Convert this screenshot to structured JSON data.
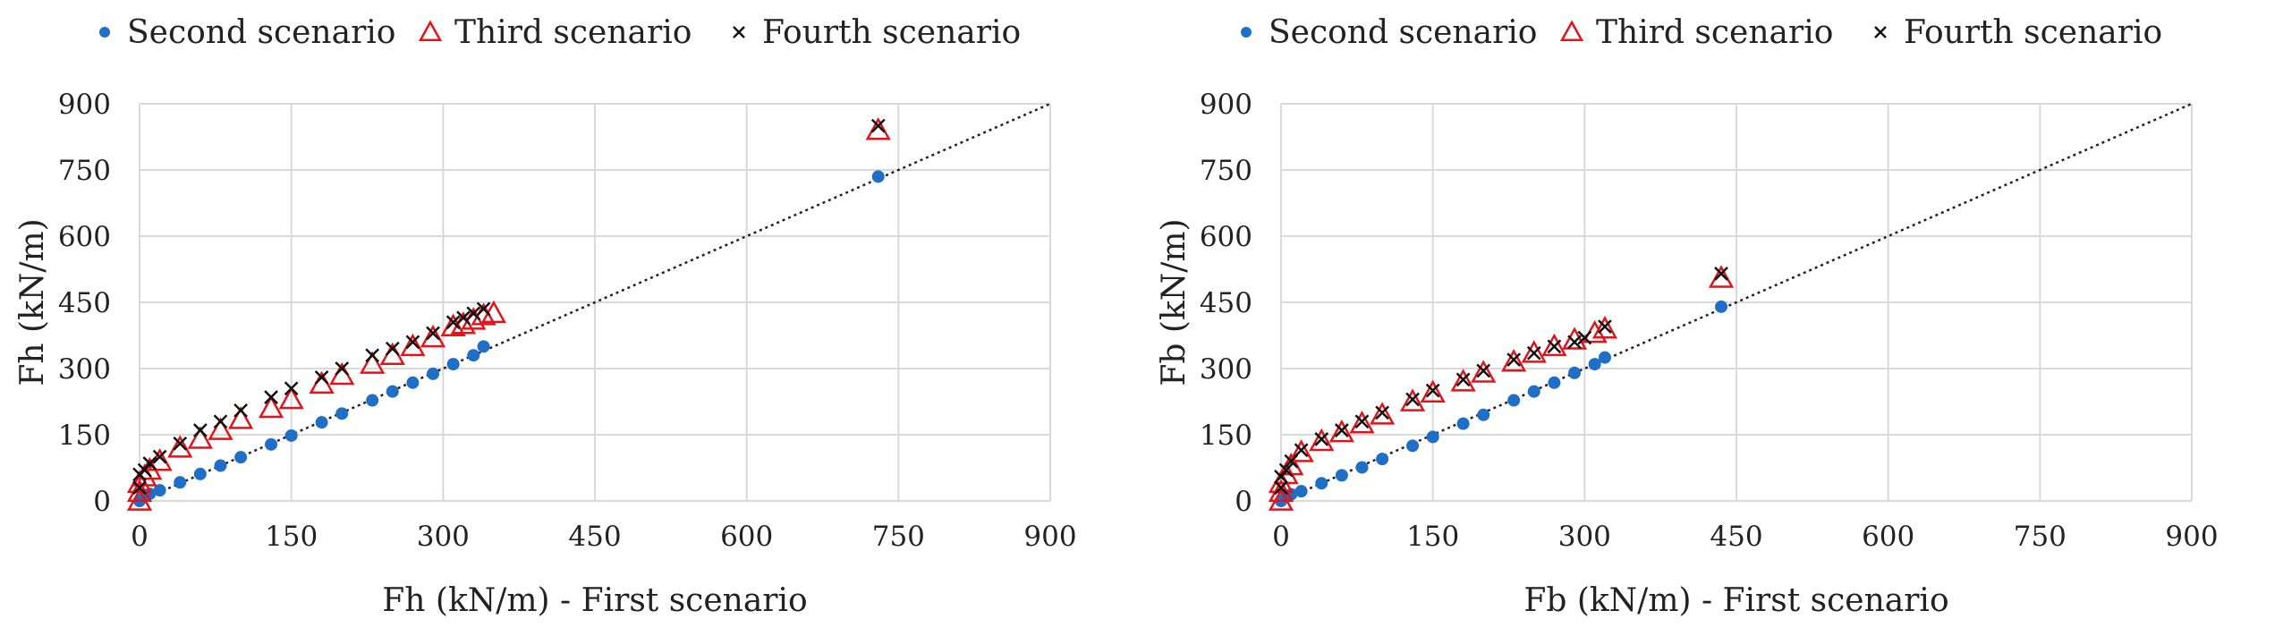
{
  "colors": {
    "second": "#1f6fc6",
    "third": "#e0151b",
    "fourth": "#111111",
    "grid": "#d9d9d9",
    "reference_line": "#222222"
  },
  "chart_data": [
    {
      "type": "scatter",
      "xlabel": "Fh (kN/m) - First scenario",
      "ylabel": "Fh (kN/m)",
      "xlim": [
        0,
        900
      ],
      "ylim": [
        0,
        900
      ],
      "xticks": [
        "0",
        "150",
        "300",
        "450",
        "600",
        "750",
        "900"
      ],
      "yticks": [
        "0",
        "150",
        "300",
        "450",
        "600",
        "750",
        "900"
      ],
      "grid": true,
      "legend_position": "top",
      "reference_line": {
        "x": [
          0,
          900
        ],
        "y": [
          0,
          900
        ],
        "style": "dotted"
      },
      "series": [
        {
          "name": "Second scenario",
          "marker": "circle",
          "x": [
            0,
            5,
            10,
            20,
            40,
            60,
            80,
            100,
            130,
            150,
            180,
            200,
            230,
            250,
            270,
            290,
            310,
            330,
            340,
            730
          ],
          "y": [
            0,
            10,
            16,
            24,
            42,
            61,
            80,
            99,
            128,
            148,
            178,
            198,
            228,
            248,
            268,
            288,
            310,
            330,
            350,
            735
          ]
        },
        {
          "name": "Third scenario",
          "marker": "triangle",
          "x": [
            0,
            0,
            0,
            5,
            10,
            20,
            40,
            60,
            80,
            100,
            130,
            150,
            180,
            200,
            230,
            250,
            270,
            290,
            310,
            320,
            330,
            340,
            350,
            730
          ],
          "y": [
            0,
            20,
            40,
            55,
            70,
            90,
            120,
            140,
            160,
            185,
            210,
            230,
            265,
            285,
            310,
            330,
            350,
            370,
            395,
            400,
            410,
            420,
            425,
            840
          ]
        },
        {
          "name": "Fourth scenario",
          "marker": "x",
          "x": [
            0,
            0,
            5,
            10,
            20,
            40,
            60,
            80,
            100,
            130,
            150,
            180,
            200,
            230,
            250,
            270,
            290,
            310,
            320,
            330,
            340,
            730
          ],
          "y": [
            30,
            60,
            70,
            85,
            100,
            130,
            160,
            180,
            205,
            235,
            255,
            280,
            300,
            330,
            345,
            360,
            380,
            405,
            415,
            425,
            435,
            850
          ]
        }
      ]
    },
    {
      "type": "scatter",
      "xlabel": "Fb (kN/m) - First scenario",
      "ylabel": "Fb (kN/m)",
      "xlim": [
        0,
        900
      ],
      "ylim": [
        0,
        900
      ],
      "xticks": [
        "0",
        "150",
        "300",
        "450",
        "600",
        "750",
        "900"
      ],
      "yticks": [
        "0",
        "150",
        "300",
        "450",
        "600",
        "750",
        "900"
      ],
      "grid": true,
      "legend_position": "top",
      "reference_line": {
        "x": [
          0,
          900
        ],
        "y": [
          0,
          900
        ],
        "style": "dotted"
      },
      "series": [
        {
          "name": "Second scenario",
          "marker": "circle",
          "x": [
            0,
            5,
            10,
            20,
            40,
            60,
            80,
            100,
            130,
            150,
            180,
            200,
            230,
            250,
            270,
            290,
            310,
            320,
            435
          ],
          "y": [
            0,
            10,
            15,
            22,
            40,
            58,
            76,
            95,
            125,
            145,
            175,
            195,
            228,
            248,
            268,
            290,
            310,
            325,
            440
          ]
        },
        {
          "name": "Third scenario",
          "marker": "triangle",
          "x": [
            0,
            0,
            0,
            5,
            10,
            20,
            40,
            60,
            80,
            100,
            130,
            150,
            180,
            200,
            230,
            250,
            270,
            290,
            310,
            320,
            435
          ],
          "y": [
            0,
            20,
            40,
            60,
            80,
            110,
            135,
            155,
            175,
            195,
            225,
            245,
            270,
            290,
            315,
            335,
            350,
            365,
            380,
            390,
            505
          ]
        },
        {
          "name": "Fourth scenario",
          "marker": "x",
          "x": [
            0,
            0,
            5,
            10,
            20,
            40,
            60,
            80,
            100,
            130,
            150,
            180,
            200,
            230,
            250,
            270,
            290,
            300,
            320,
            435
          ],
          "y": [
            30,
            55,
            70,
            90,
            115,
            140,
            160,
            180,
            200,
            230,
            250,
            275,
            295,
            320,
            335,
            350,
            360,
            370,
            395,
            515
          ]
        }
      ]
    }
  ]
}
